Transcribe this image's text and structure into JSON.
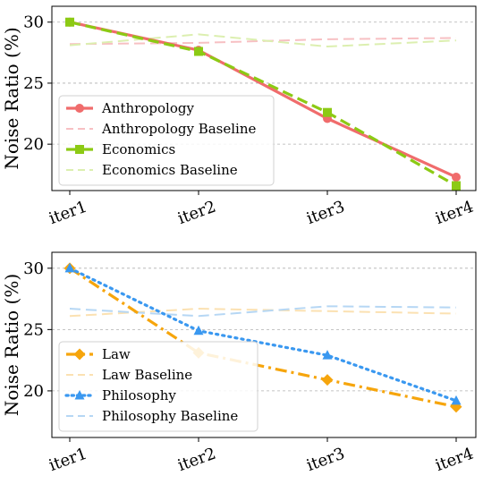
{
  "chart_data": [
    {
      "type": "line",
      "x": [
        "iter1",
        "iter2",
        "iter3",
        "iter4"
      ],
      "ylabel": "Noise Ratio (%)",
      "ylim": [
        16.2,
        31.3
      ],
      "yticks": [
        20,
        25,
        30
      ],
      "grid": true,
      "legend_position": "lower-left",
      "series": [
        {
          "name": "Anthropology",
          "values": [
            30.0,
            27.7,
            22.1,
            17.3
          ],
          "color": "#f06c6c",
          "style": "solid",
          "marker": "circle"
        },
        {
          "name": "Anthropology Baseline",
          "values": [
            28.2,
            28.3,
            28.6,
            28.7
          ],
          "color": "#f7c0c3",
          "style": "dashed",
          "marker": "none"
        },
        {
          "name": "Economics",
          "values": [
            30.0,
            27.6,
            22.6,
            16.6
          ],
          "color": "#8cca14",
          "style": "dashed",
          "marker": "square"
        },
        {
          "name": "Economics Baseline",
          "values": [
            28.1,
            29.0,
            28.0,
            28.5
          ],
          "color": "#dcefb0",
          "style": "dashed",
          "marker": "none"
        }
      ]
    },
    {
      "type": "line",
      "x": [
        "iter1",
        "iter2",
        "iter3",
        "iter4"
      ],
      "ylabel": "Noise Ratio (%)",
      "ylim": [
        16.2,
        31.3
      ],
      "yticks": [
        20,
        25,
        30
      ],
      "grid": true,
      "legend_position": "lower-left",
      "series": [
        {
          "name": "Law",
          "values": [
            30.0,
            23.1,
            20.9,
            18.7
          ],
          "color": "#f6a50c",
          "style": "dashdot",
          "marker": "diamond"
        },
        {
          "name": "Law Baseline",
          "values": [
            26.1,
            26.7,
            26.5,
            26.3
          ],
          "color": "#fbe1b2",
          "style": "dashed",
          "marker": "none"
        },
        {
          "name": "Philosophy",
          "values": [
            30.0,
            24.9,
            22.9,
            19.2
          ],
          "color": "#3a98f0",
          "style": "dotted",
          "marker": "triangle"
        },
        {
          "name": "Philosophy Baseline",
          "values": [
            26.7,
            26.1,
            26.9,
            26.8
          ],
          "color": "#b6d7f4",
          "style": "dashed",
          "marker": "none"
        }
      ]
    }
  ]
}
